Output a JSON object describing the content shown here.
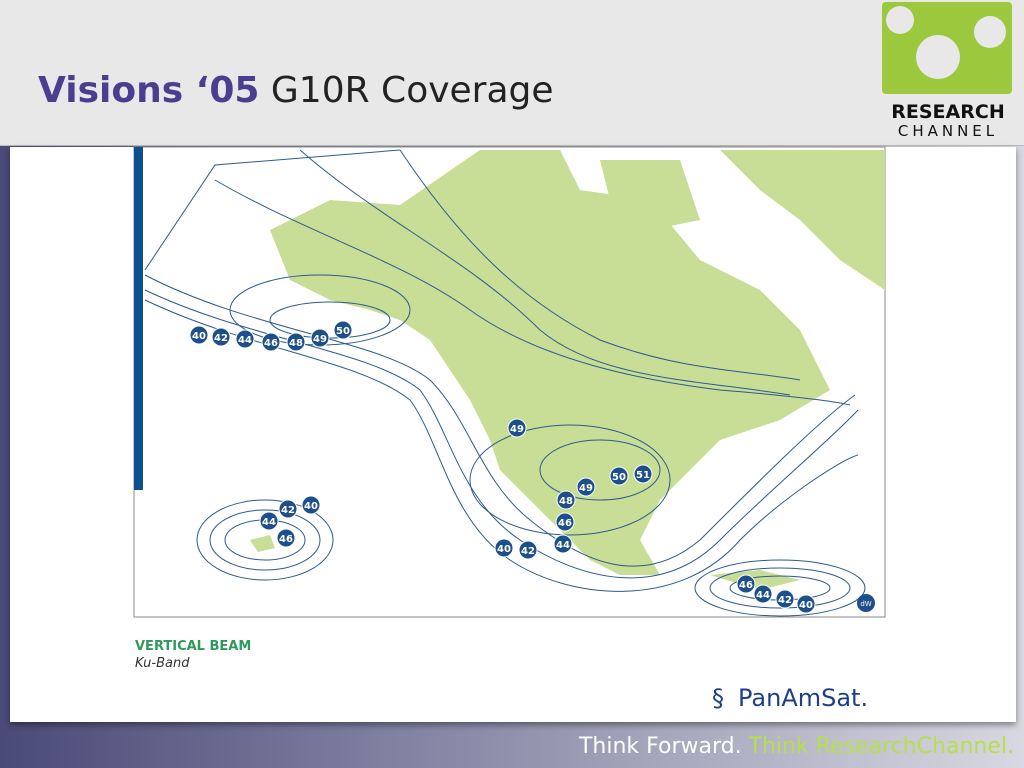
{
  "header": {
    "title_bold": "Visions ‘05",
    "title_rest": "G10R Coverage",
    "logo_top": "RESEARCH",
    "logo_bottom": "CHANNEL"
  },
  "map": {
    "contour_labels": [
      40,
      42,
      44,
      46,
      48,
      49,
      50,
      49,
      50,
      51,
      49,
      48,
      46,
      44,
      42,
      40,
      40,
      42,
      44,
      46,
      46,
      44,
      42,
      40
    ],
    "corner_mark": "dW"
  },
  "caption": {
    "beam": "VERTICAL BEAM",
    "band": "Ku-Band"
  },
  "brand": "PanAmSat.",
  "footer": {
    "part1": "Think Forward.",
    "part2": "Think ResearchChannel."
  }
}
